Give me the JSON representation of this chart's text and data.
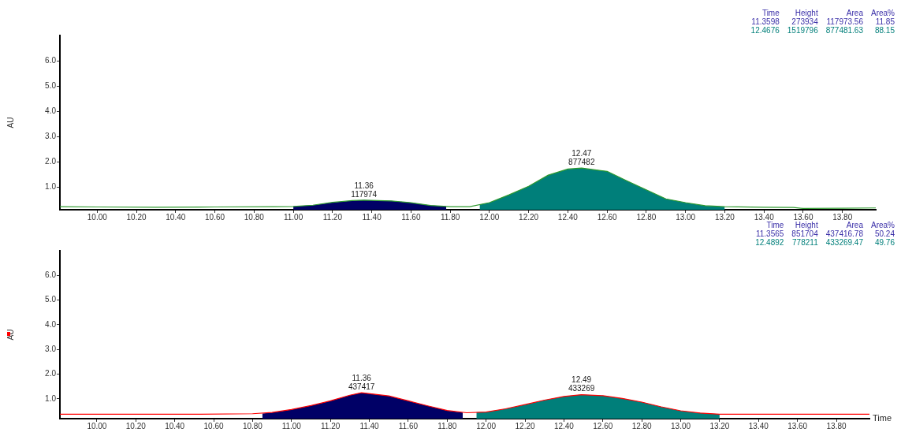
{
  "chart_data": [
    {
      "type": "line",
      "ylabel": "AU",
      "marker": "none",
      "xlim": [
        9.81,
        13.97
      ],
      "ylim": [
        0.1,
        7.0
      ],
      "xticks": [
        {
          "value": 10,
          "label": "10.00"
        },
        {
          "value": 10.2,
          "label": "10.20"
        },
        {
          "value": 10.4,
          "label": "10.40"
        },
        {
          "value": 10.6,
          "label": "10.60"
        },
        {
          "value": 10.8,
          "label": "10.80"
        },
        {
          "value": 11,
          "label": "11.00"
        },
        {
          "value": 11.2,
          "label": "11.20"
        },
        {
          "value": 11.4,
          "label": "11.40"
        },
        {
          "value": 11.6,
          "label": "11.60"
        },
        {
          "value": 11.8,
          "label": "11.80"
        },
        {
          "value": 12,
          "label": "12.00"
        },
        {
          "value": 12.2,
          "label": "12.20"
        },
        {
          "value": 12.4,
          "label": "12.40"
        },
        {
          "value": 12.6,
          "label": "12.60"
        },
        {
          "value": 12.8,
          "label": "12.80"
        },
        {
          "value": 13,
          "label": "13.00"
        },
        {
          "value": 13.2,
          "label": "13.20"
        },
        {
          "value": 13.4,
          "label": "13.40"
        },
        {
          "value": 13.6,
          "label": "13.60"
        },
        {
          "value": 13.8,
          "label": "13.80"
        }
      ],
      "yticks": [
        {
          "value": 1,
          "label": "1.0"
        },
        {
          "value": 2,
          "label": "2.0"
        },
        {
          "value": 3,
          "label": "3.0"
        },
        {
          "value": 4,
          "label": "4.0"
        },
        {
          "value": 5,
          "label": "5.0"
        },
        {
          "value": 6,
          "label": "6.0"
        }
      ],
      "series": [
        {
          "type": "line",
          "color": "#2e9a2e",
          "x": [
            9.81,
            10.0,
            10.3,
            10.6,
            10.9,
            11.0,
            11.1,
            11.2,
            11.3,
            11.36,
            11.5,
            11.6,
            11.7,
            11.8,
            11.9,
            12.0,
            12.1,
            12.2,
            12.3,
            12.4,
            12.47,
            12.6,
            12.7,
            12.8,
            12.9,
            13.0,
            13.1,
            13.2,
            13.4,
            13.55,
            13.6,
            13.8,
            13.97
          ],
          "values": [
            0.22,
            0.21,
            0.2,
            0.21,
            0.22,
            0.23,
            0.28,
            0.39,
            0.46,
            0.48,
            0.45,
            0.38,
            0.27,
            0.22,
            0.22,
            0.38,
            0.69,
            1.03,
            1.47,
            1.71,
            1.75,
            1.62,
            1.25,
            0.89,
            0.53,
            0.38,
            0.26,
            0.22,
            0.2,
            0.19,
            0.15,
            0.16,
            0.17
          ]
        },
        {
          "type": "area",
          "color": "#000066",
          "x": [
            11.0,
            11.1,
            11.2,
            11.3,
            11.36,
            11.5,
            11.6,
            11.7,
            11.78
          ],
          "values": [
            0.23,
            0.28,
            0.39,
            0.46,
            0.48,
            0.45,
            0.38,
            0.27,
            0.23
          ]
        },
        {
          "type": "area",
          "color": "#007f7a",
          "x": [
            11.95,
            12.0,
            12.1,
            12.2,
            12.3,
            12.4,
            12.47,
            12.6,
            12.7,
            12.8,
            12.9,
            13.0,
            13.1,
            13.2
          ],
          "values": [
            0.3,
            0.38,
            0.69,
            1.03,
            1.47,
            1.71,
            1.75,
            1.62,
            1.25,
            0.89,
            0.53,
            0.38,
            0.26,
            0.22
          ]
        }
      ],
      "annotations": [
        {
          "text": "11.36\n117974",
          "x": 11.36,
          "y": 0.48
        },
        {
          "text": "12.47\n877482",
          "x": 12.47,
          "y": 1.75
        },
        "Time",
        "Height",
        "Area",
        "Area%",
        "11.3598",
        "273934",
        "117973.56",
        "11.85",
        "12.4676",
        "1519796",
        "877481.63",
        "88.15"
      ]
    },
    {
      "type": "line",
      "ylabel": "AU",
      "xlabel": "Time",
      "marker": "none",
      "xlim": [
        9.81,
        13.97
      ],
      "ylim": [
        0.2,
        7.0
      ],
      "xticks": [
        {
          "value": 10,
          "label": "10.00"
        },
        {
          "value": 10.2,
          "label": "10.20"
        },
        {
          "value": 10.4,
          "label": "10.40"
        },
        {
          "value": 10.6,
          "label": "10.60"
        },
        {
          "value": 10.8,
          "label": "10.80"
        },
        {
          "value": 11,
          "label": "11.00"
        },
        {
          "value": 11.2,
          "label": "11.20"
        },
        {
          "value": 11.4,
          "label": "11.40"
        },
        {
          "value": 11.6,
          "label": "11.60"
        },
        {
          "value": 11.8,
          "label": "11.80"
        },
        {
          "value": 12,
          "label": "12.00"
        },
        {
          "value": 12.2,
          "label": "12.20"
        },
        {
          "value": 12.4,
          "label": "12.40"
        },
        {
          "value": 12.6,
          "label": "12.60"
        },
        {
          "value": 12.8,
          "label": "12.80"
        },
        {
          "value": 13,
          "label": "13.00"
        },
        {
          "value": 13.2,
          "label": "13.20"
        },
        {
          "value": 13.4,
          "label": "13.40"
        },
        {
          "value": 13.6,
          "label": "13.60"
        },
        {
          "value": 13.8,
          "label": "13.80"
        }
      ],
      "yticks": [
        {
          "value": 1,
          "label": "1.0"
        },
        {
          "value": 2,
          "label": "2.0"
        },
        {
          "value": 3,
          "label": "3.0"
        },
        {
          "value": 4,
          "label": "4.0"
        },
        {
          "value": 5,
          "label": "5.0"
        },
        {
          "value": 6,
          "label": "6.0"
        }
      ],
      "series": [
        {
          "type": "line",
          "color": "#ff0000",
          "x": [
            9.81,
            10.2,
            10.5,
            10.8,
            10.9,
            11.0,
            11.1,
            11.2,
            11.3,
            11.36,
            11.5,
            11.6,
            11.7,
            11.8,
            11.9,
            12.0,
            12.1,
            12.2,
            12.3,
            12.4,
            12.49,
            12.6,
            12.7,
            12.8,
            12.9,
            13.0,
            13.1,
            13.2,
            13.5,
            13.97
          ],
          "values": [
            0.38,
            0.38,
            0.38,
            0.4,
            0.45,
            0.57,
            0.73,
            0.92,
            1.15,
            1.25,
            1.12,
            0.92,
            0.72,
            0.53,
            0.44,
            0.47,
            0.6,
            0.77,
            0.95,
            1.1,
            1.17,
            1.13,
            1.02,
            0.87,
            0.68,
            0.52,
            0.43,
            0.38,
            0.38,
            0.38
          ]
        },
        {
          "type": "area",
          "color": "#000066",
          "x": [
            10.85,
            10.9,
            11.0,
            11.1,
            11.2,
            11.3,
            11.36,
            11.5,
            11.6,
            11.7,
            11.8,
            11.88
          ],
          "values": [
            0.41,
            0.45,
            0.57,
            0.73,
            0.92,
            1.15,
            1.25,
            1.12,
            0.92,
            0.72,
            0.53,
            0.45
          ]
        },
        {
          "type": "area",
          "color": "#007f7a",
          "x": [
            11.95,
            12.0,
            12.1,
            12.2,
            12.3,
            12.4,
            12.49,
            12.6,
            12.7,
            12.8,
            12.9,
            13.0,
            13.1,
            13.2
          ],
          "values": [
            0.46,
            0.47,
            0.6,
            0.77,
            0.95,
            1.1,
            1.17,
            1.13,
            1.02,
            0.87,
            0.68,
            0.52,
            0.43,
            0.38
          ]
        }
      ],
      "annotations": [
        {
          "text": "11.36\n437417",
          "x": 11.36,
          "y": 1.25
        },
        {
          "text": "12.49\n433269",
          "x": 12.49,
          "y": 1.17
        },
        "Time",
        "Height",
        "Area",
        "Area%",
        "11.3565",
        "851704",
        "437416.78",
        "50.24",
        "12.4892",
        "778211",
        "433269.47",
        "49.76"
      ]
    }
  ]
}
